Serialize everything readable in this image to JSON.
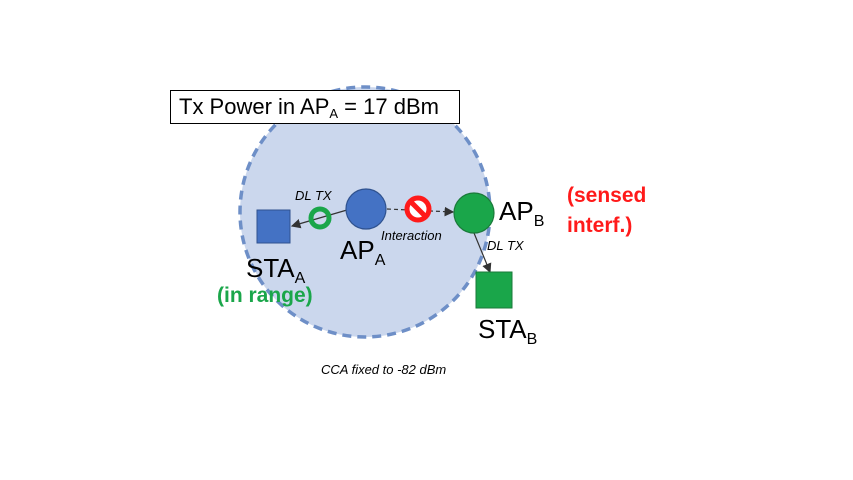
{
  "tx_power": {
    "prefix": "Tx Power in AP",
    "sub": "A",
    "suffix": " = 17 dBm"
  },
  "ap_a": {
    "main": "AP",
    "sub": "A"
  },
  "ap_b": {
    "main": "AP",
    "sub": "B"
  },
  "sta_a": {
    "main": "STA",
    "sub": "A"
  },
  "sta_b": {
    "main": "STA",
    "sub": "B"
  },
  "labels": {
    "dl_tx_a": "DL TX",
    "dl_tx_b": "DL TX",
    "interaction": "Interaction",
    "in_range": "(in range)",
    "sensed_interf": "(sensed interf.)",
    "cca": "CCA fixed to -82 dBm"
  },
  "colors": {
    "coverage_fill": "#cbd7ed",
    "coverage_border": "#6e8fc7",
    "ap_a": "#4472c4",
    "ap_b": "#1aa64a",
    "ok_ring": "#1aa64a",
    "blocked": "#ff1a1a"
  },
  "icons": [
    "ok-ring-icon",
    "prohibited-icon"
  ]
}
